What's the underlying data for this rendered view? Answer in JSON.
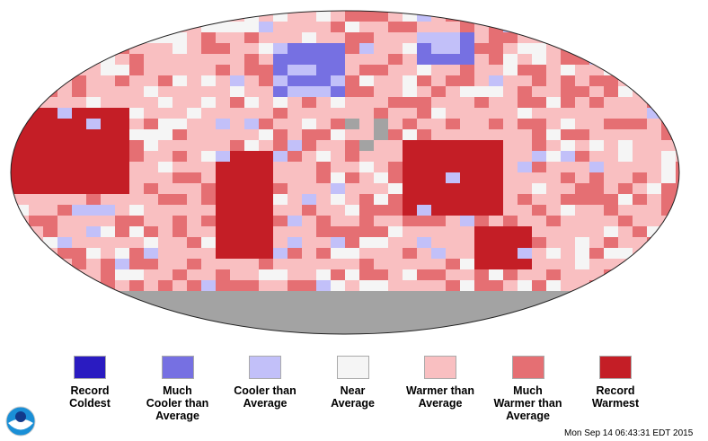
{
  "legend": [
    {
      "label": "Record\nColdest",
      "color": "#2a1bc1"
    },
    {
      "label": "Much\nCooler than\nAverage",
      "color": "#7670e2"
    },
    {
      "label": "Cooler than\nAverage",
      "color": "#c2c0f9"
    },
    {
      "label": "Near\nAverage",
      "color": "#f5f5f5"
    },
    {
      "label": "Warmer than\nAverage",
      "color": "#f9bfc1"
    },
    {
      "label": "Much\nWarmer than\nAverage",
      "color": "#e56f73"
    },
    {
      "label": "Record\nWarmest",
      "color": "#c41e26"
    }
  ],
  "timestamp": "Mon Sep 14 06:43:31 EDT 2015",
  "logo_text": "NOAA",
  "colors": {
    "no_data": "#a3a3a3"
  }
}
